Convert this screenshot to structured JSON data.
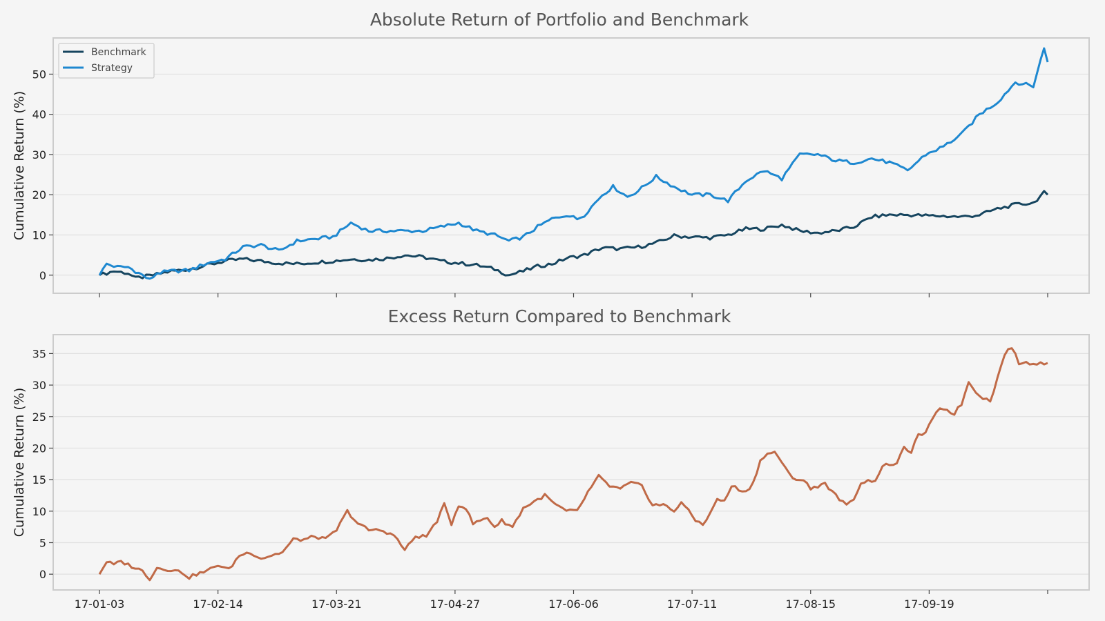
{
  "chart_data": [
    {
      "type": "line",
      "title": "Absolute Return of Portfolio and Benchmark",
      "xlabel": "",
      "ylabel": "Cumulative Return (%)",
      "ylim": [
        -4.5,
        59
      ],
      "yticks": [
        0,
        10,
        20,
        30,
        40,
        50
      ],
      "grid": true,
      "legend": "top-left",
      "x_tick_labels_shown": false,
      "series": [
        {
          "name": "Benchmark",
          "color": "#16455f",
          "knots": [
            [
              0,
              0
            ],
            [
              4,
              1
            ],
            [
              8,
              0.5
            ],
            [
              10,
              -0.8
            ],
            [
              15,
              0
            ],
            [
              20,
              1
            ],
            [
              25,
              1.5
            ],
            [
              30,
              2.5
            ],
            [
              35,
              3.5
            ],
            [
              40,
              4
            ],
            [
              45,
              3.5
            ],
            [
              50,
              3
            ],
            [
              55,
              2.8
            ],
            [
              60,
              3.2
            ],
            [
              65,
              3.5
            ],
            [
              70,
              4
            ],
            [
              75,
              3.8
            ],
            [
              80,
              4.2
            ],
            [
              85,
              5
            ],
            [
              90,
              4.5
            ],
            [
              95,
              3.5
            ],
            [
              100,
              3
            ],
            [
              105,
              2.5
            ],
            [
              110,
              1.5
            ],
            [
              114,
              0
            ],
            [
              118,
              1
            ],
            [
              122,
              2.2
            ],
            [
              126,
              2.8
            ],
            [
              130,
              4.2
            ],
            [
              135,
              5
            ],
            [
              140,
              6.8
            ],
            [
              145,
              6.5
            ],
            [
              150,
              7
            ],
            [
              155,
              8
            ],
            [
              160,
              9.8
            ],
            [
              165,
              9.5
            ],
            [
              170,
              9.3
            ],
            [
              175,
              10
            ],
            [
              180,
              11.5
            ],
            [
              185,
              11.5
            ],
            [
              190,
              12.5
            ],
            [
              195,
              11
            ],
            [
              200,
              10.5
            ],
            [
              205,
              11
            ],
            [
              210,
              12
            ],
            [
              215,
              14.5
            ],
            [
              220,
              15
            ],
            [
              225,
              15
            ],
            [
              230,
              14.8
            ],
            [
              235,
              14.7
            ],
            [
              240,
              14.5
            ],
            [
              245,
              15
            ],
            [
              250,
              16.5
            ],
            [
              255,
              17.5
            ],
            [
              260,
              18
            ],
            [
              263,
              20.5
            ],
            [
              264,
              20
            ]
          ]
        },
        {
          "name": "Strategy",
          "color": "#1e88d0",
          "knots": [
            [
              0,
              0
            ],
            [
              2,
              2.8
            ],
            [
              5,
              2
            ],
            [
              8,
              2
            ],
            [
              12,
              0
            ],
            [
              14,
              -1.2
            ],
            [
              16,
              0.5
            ],
            [
              20,
              1
            ],
            [
              25,
              1.2
            ],
            [
              30,
              3
            ],
            [
              35,
              4
            ],
            [
              40,
              7
            ],
            [
              45,
              7.5
            ],
            [
              50,
              6
            ],
            [
              55,
              8.5
            ],
            [
              60,
              9
            ],
            [
              65,
              9.5
            ],
            [
              70,
              13
            ],
            [
              75,
              11
            ],
            [
              80,
              11
            ],
            [
              85,
              11
            ],
            [
              90,
              11
            ],
            [
              95,
              12
            ],
            [
              100,
              13
            ],
            [
              105,
              11
            ],
            [
              110,
              10
            ],
            [
              114,
              8.5
            ],
            [
              118,
              9.5
            ],
            [
              122,
              12
            ],
            [
              126,
              14
            ],
            [
              130,
              15
            ],
            [
              133,
              14
            ],
            [
              135,
              15
            ],
            [
              140,
              20
            ],
            [
              143,
              22
            ],
            [
              147,
              19.5
            ],
            [
              150,
              21
            ],
            [
              155,
              24.5
            ],
            [
              160,
              22
            ],
            [
              165,
              20
            ],
            [
              170,
              20
            ],
            [
              175,
              18.5
            ],
            [
              180,
              23.5
            ],
            [
              185,
              26
            ],
            [
              190,
              24
            ],
            [
              195,
              30
            ],
            [
              200,
              30
            ],
            [
              205,
              28.5
            ],
            [
              210,
              28
            ],
            [
              215,
              29
            ],
            [
              220,
              28
            ],
            [
              225,
              26
            ],
            [
              230,
              30
            ],
            [
              235,
              32
            ],
            [
              240,
              35
            ],
            [
              245,
              40
            ],
            [
              250,
              43
            ],
            [
              255,
              48
            ],
            [
              260,
              47
            ],
            [
              263,
              56.5
            ],
            [
              264,
              53
            ]
          ]
        }
      ]
    },
    {
      "type": "line",
      "title": "Excess Return Compared to Benchmark",
      "xlabel": "",
      "ylabel": "Cumulative Return (%)",
      "ylim": [
        -2.5,
        38
      ],
      "yticks": [
        0,
        5,
        10,
        15,
        20,
        25,
        30,
        35
      ],
      "grid": true,
      "x_tick_labels": [
        "17-01-03",
        "17-02-14",
        "17-03-21",
        "17-04-27",
        "17-06-06",
        "17-07-11",
        "17-08-15",
        "17-09-19",
        ""
      ],
      "x_ticks": [
        0,
        33,
        66,
        99,
        132,
        165,
        198,
        231,
        264
      ],
      "series": [
        {
          "name": "",
          "color": "#c06a47",
          "knots": [
            [
              0,
              0
            ],
            [
              2,
              2
            ],
            [
              4,
              1.5
            ],
            [
              6,
              2
            ],
            [
              8,
              1.5
            ],
            [
              10,
              1
            ],
            [
              12,
              0.5
            ],
            [
              14,
              -0.7
            ],
            [
              16,
              1
            ],
            [
              20,
              0.7
            ],
            [
              23,
              0.3
            ],
            [
              25,
              -0.5
            ],
            [
              27,
              0
            ],
            [
              30,
              0.5
            ],
            [
              33,
              1.5
            ],
            [
              36,
              0.7
            ],
            [
              39,
              3
            ],
            [
              42,
              3.5
            ],
            [
              45,
              2.5
            ],
            [
              48,
              3
            ],
            [
              51,
              3.5
            ],
            [
              54,
              5.5
            ],
            [
              57,
              5.5
            ],
            [
              60,
              6
            ],
            [
              63,
              5.5
            ],
            [
              66,
              7
            ],
            [
              69,
              10
            ],
            [
              72,
              8
            ],
            [
              75,
              7
            ],
            [
              78,
              7
            ],
            [
              81,
              6.5
            ],
            [
              83,
              5.5
            ],
            [
              85,
              3.8
            ],
            [
              88,
              6
            ],
            [
              91,
              6
            ],
            [
              94,
              8.5
            ],
            [
              96,
              11
            ],
            [
              98,
              8
            ],
            [
              100,
              11
            ],
            [
              102,
              10.5
            ],
            [
              104,
              8
            ],
            [
              106,
              8.5
            ],
            [
              108,
              9
            ],
            [
              110,
              7.5
            ],
            [
              112,
              8.5
            ],
            [
              115,
              7.5
            ],
            [
              118,
              10.5
            ],
            [
              121,
              11.5
            ],
            [
              124,
              12.5
            ],
            [
              127,
              11
            ],
            [
              130,
              10
            ],
            [
              133,
              10
            ],
            [
              136,
              13
            ],
            [
              139,
              15.5
            ],
            [
              142,
              14
            ],
            [
              145,
              13.5
            ],
            [
              148,
              14.5
            ],
            [
              151,
              14
            ],
            [
              154,
              11
            ],
            [
              157,
              11
            ],
            [
              160,
              10
            ],
            [
              162,
              11.5
            ],
            [
              164,
              10
            ],
            [
              166,
              8.5
            ],
            [
              168,
              8
            ],
            [
              170,
              9.5
            ],
            [
              172,
              12
            ],
            [
              174,
              11.5
            ],
            [
              176,
              14
            ],
            [
              178,
              13.5
            ],
            [
              180,
              13
            ],
            [
              182,
              14.5
            ],
            [
              184,
              18
            ],
            [
              186,
              19
            ],
            [
              188,
              19.5
            ],
            [
              190,
              17.5
            ],
            [
              192,
              16
            ],
            [
              194,
              15
            ],
            [
              196,
              15
            ],
            [
              198,
              13.5
            ],
            [
              200,
              14
            ],
            [
              202,
              14.5
            ],
            [
              204,
              13
            ],
            [
              206,
              12
            ],
            [
              208,
              10.8
            ],
            [
              210,
              12
            ],
            [
              212,
              14.5
            ],
            [
              216,
              15
            ],
            [
              218,
              17
            ],
            [
              220,
              17.5
            ],
            [
              222,
              17.5
            ],
            [
              224,
              20
            ],
            [
              226,
              19.5
            ],
            [
              228,
              22
            ],
            [
              230,
              22.5
            ],
            [
              232,
              24.5
            ],
            [
              234,
              26.5
            ],
            [
              236,
              26
            ],
            [
              238,
              25.5
            ],
            [
              240,
              27
            ],
            [
              242,
              30.5
            ],
            [
              244,
              29
            ],
            [
              246,
              28
            ],
            [
              248,
              27.5
            ],
            [
              250,
              31
            ],
            [
              252,
              35
            ],
            [
              254,
              36
            ],
            [
              256,
              33.5
            ],
            [
              264,
              33.5
            ]
          ]
        }
      ]
    }
  ]
}
